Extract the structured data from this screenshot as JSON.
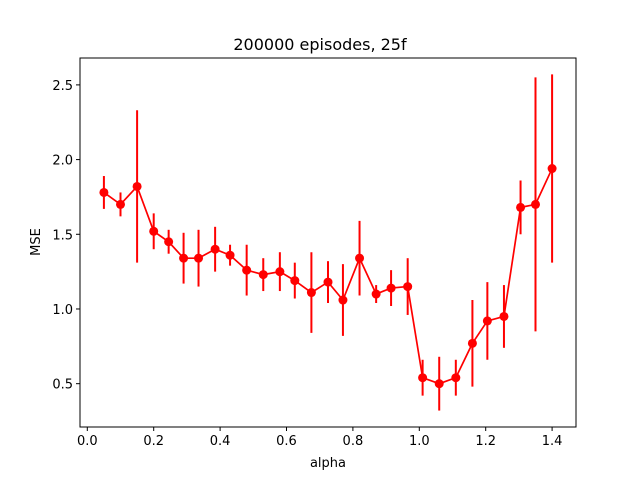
{
  "chart_data": {
    "type": "line",
    "title": "200000 episodes, 25f",
    "xlabel": "alpha",
    "ylabel": "MSE",
    "xlim": [
      -0.022,
      1.472
    ],
    "ylim": [
      0.21,
      2.68
    ],
    "xticks": [
      0.0,
      0.2,
      0.4,
      0.6,
      0.8,
      1.0,
      1.2,
      1.4
    ],
    "xtick_labels": [
      "0.0",
      "0.2",
      "0.4",
      "0.6",
      "0.8",
      "1.0",
      "1.2",
      "1.4"
    ],
    "yticks": [
      0.5,
      1.0,
      1.5,
      2.0,
      2.5
    ],
    "ytick_labels": [
      "0.5",
      "1.0",
      "1.5",
      "2.0",
      "2.5"
    ],
    "grid": false,
    "color": "#ff0000",
    "series": [
      {
        "x": [
          0.05,
          0.1,
          0.15,
          0.2,
          0.245,
          0.29,
          0.335,
          0.385,
          0.43,
          0.48,
          0.53,
          0.58,
          0.625,
          0.675,
          0.725,
          0.77,
          0.82,
          0.87,
          0.915,
          0.965,
          1.01,
          1.06,
          1.11,
          1.16,
          1.205,
          1.255,
          1.305,
          1.35,
          1.4
        ],
        "y": [
          1.78,
          1.7,
          1.82,
          1.52,
          1.45,
          1.34,
          1.34,
          1.4,
          1.36,
          1.26,
          1.23,
          1.25,
          1.19,
          1.11,
          1.18,
          1.06,
          1.34,
          1.1,
          1.14,
          1.15,
          0.54,
          0.5,
          0.54,
          0.77,
          0.92,
          0.95,
          1.68,
          1.7,
          1.94
        ],
        "yerr": [
          0.11,
          0.08,
          0.51,
          0.12,
          0.08,
          0.17,
          0.19,
          0.15,
          0.07,
          0.17,
          0.11,
          0.13,
          0.12,
          0.27,
          0.14,
          0.24,
          0.25,
          0.06,
          0.12,
          0.19,
          0.12,
          0.18,
          0.12,
          0.29,
          0.26,
          0.21,
          0.18,
          0.85,
          0.63
        ]
      }
    ]
  }
}
